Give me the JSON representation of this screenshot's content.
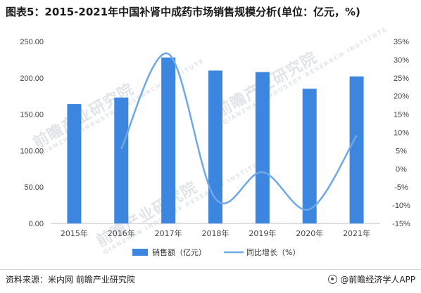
{
  "page": {
    "title": "图表5：2015-2021年中国补肾中成药市场销售规模分析(单位：亿元，%)",
    "source": "资料来源：米内网 前瞻产业研究院",
    "brand": "@前瞻经济学人APP",
    "watermark": {
      "main": "前瞻产业研究院",
      "sub": "QIANZHAN INDUSTRY RESEARCH INSTITUTE"
    }
  },
  "chart_data": {
    "type": "bar",
    "categories": [
      "2015年",
      "2016年",
      "2017年",
      "2018年",
      "2019年",
      "2020年",
      "2021年"
    ],
    "series": [
      {
        "name": "销售额（亿元）",
        "type": "bar",
        "axis": "left",
        "color": "#3d86e0",
        "values": [
          164,
          173,
          228,
          210,
          208,
          185,
          202
        ]
      },
      {
        "name": "同比增长（%）",
        "type": "line",
        "axis": "right",
        "color": "#6fa8e6",
        "values": [
          null,
          5.5,
          31.6,
          -8.2,
          -0.9,
          -11.1,
          9.2
        ]
      }
    ],
    "y_left": {
      "lim": [
        0,
        250
      ],
      "ticks": [
        0,
        50,
        100,
        150,
        200,
        250
      ],
      "tick_labels": [
        "0.00",
        "50.00",
        "100.00",
        "150.00",
        "200.00",
        "250.00"
      ]
    },
    "y_right": {
      "lim": [
        -15,
        35
      ],
      "ticks": [
        -15,
        -10,
        -5,
        0,
        5,
        10,
        15,
        20,
        25,
        30,
        35
      ],
      "tick_labels": [
        "-15%",
        "-10%",
        "-5%",
        "0%",
        "5%",
        "10%",
        "15%",
        "20%",
        "25%",
        "30%",
        "35%"
      ]
    },
    "grid": false,
    "legend_position": "bottom"
  }
}
